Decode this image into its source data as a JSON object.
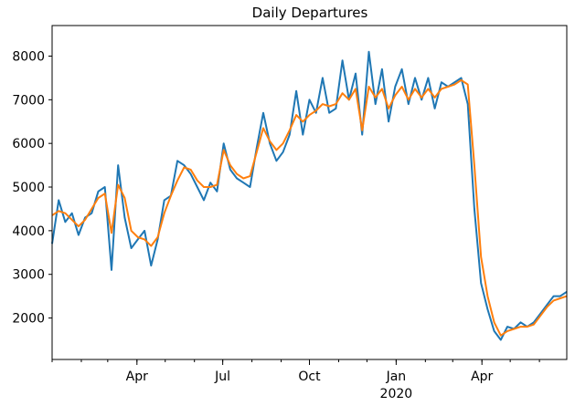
{
  "chart_data": {
    "type": "line",
    "title": "Daily Departures",
    "xlabel": "",
    "ylabel": "",
    "x_range": [
      "2019-01-01",
      "2020-06-30"
    ],
    "ylim": [
      1050,
      8700
    ],
    "grid": false,
    "legend": "none",
    "x_ticks": [
      {
        "date": "2019-04-01",
        "label": "Apr"
      },
      {
        "date": "2019-07-01",
        "label": "Jul"
      },
      {
        "date": "2019-10-01",
        "label": "Oct"
      },
      {
        "date": "2020-01-01",
        "label": "Jan"
      },
      {
        "date": "2020-04-01",
        "label": "Apr"
      }
    ],
    "x_year_label": {
      "date": "2020-01-01",
      "label": "2020"
    },
    "y_ticks": [
      2000,
      3000,
      4000,
      5000,
      6000,
      7000,
      8000
    ],
    "series": [
      {
        "color": "#1f77b4",
        "points": [
          [
            "2019-01-01",
            3700
          ],
          [
            "2019-01-08",
            4700
          ],
          [
            "2019-01-15",
            4200
          ],
          [
            "2019-01-22",
            4400
          ],
          [
            "2019-01-29",
            3900
          ],
          [
            "2019-02-05",
            4300
          ],
          [
            "2019-02-12",
            4400
          ],
          [
            "2019-02-19",
            4900
          ],
          [
            "2019-02-26",
            5000
          ],
          [
            "2019-03-05",
            3100
          ],
          [
            "2019-03-12",
            5500
          ],
          [
            "2019-03-19",
            4300
          ],
          [
            "2019-03-26",
            3600
          ],
          [
            "2019-04-02",
            3800
          ],
          [
            "2019-04-09",
            4000
          ],
          [
            "2019-04-16",
            3200
          ],
          [
            "2019-04-23",
            3800
          ],
          [
            "2019-04-30",
            4700
          ],
          [
            "2019-05-07",
            4800
          ],
          [
            "2019-05-14",
            5600
          ],
          [
            "2019-05-21",
            5500
          ],
          [
            "2019-05-28",
            5300
          ],
          [
            "2019-06-04",
            5000
          ],
          [
            "2019-06-11",
            4700
          ],
          [
            "2019-06-18",
            5100
          ],
          [
            "2019-06-25",
            4900
          ],
          [
            "2019-07-02",
            6000
          ],
          [
            "2019-07-09",
            5400
          ],
          [
            "2019-07-16",
            5200
          ],
          [
            "2019-07-23",
            5100
          ],
          [
            "2019-07-30",
            5000
          ],
          [
            "2019-08-06",
            5900
          ],
          [
            "2019-08-13",
            6700
          ],
          [
            "2019-08-20",
            6000
          ],
          [
            "2019-08-27",
            5600
          ],
          [
            "2019-09-03",
            5800
          ],
          [
            "2019-09-10",
            6200
          ],
          [
            "2019-09-17",
            7200
          ],
          [
            "2019-09-24",
            6200
          ],
          [
            "2019-10-01",
            7000
          ],
          [
            "2019-10-08",
            6700
          ],
          [
            "2019-10-15",
            7500
          ],
          [
            "2019-10-22",
            6700
          ],
          [
            "2019-10-29",
            6800
          ],
          [
            "2019-11-05",
            7900
          ],
          [
            "2019-11-12",
            7000
          ],
          [
            "2019-11-19",
            7600
          ],
          [
            "2019-11-26",
            6200
          ],
          [
            "2019-12-03",
            8100
          ],
          [
            "2019-12-10",
            6900
          ],
          [
            "2019-12-17",
            7700
          ],
          [
            "2019-12-24",
            6500
          ],
          [
            "2019-12-31",
            7300
          ],
          [
            "2020-01-07",
            7700
          ],
          [
            "2020-01-14",
            6900
          ],
          [
            "2020-01-21",
            7500
          ],
          [
            "2020-01-28",
            7000
          ],
          [
            "2020-02-04",
            7500
          ],
          [
            "2020-02-11",
            6800
          ],
          [
            "2020-02-18",
            7400
          ],
          [
            "2020-02-25",
            7300
          ],
          [
            "2020-03-03",
            7400
          ],
          [
            "2020-03-10",
            7500
          ],
          [
            "2020-03-17",
            6900
          ],
          [
            "2020-03-24",
            4500
          ],
          [
            "2020-03-31",
            2800
          ],
          [
            "2020-04-07",
            2200
          ],
          [
            "2020-04-14",
            1700
          ],
          [
            "2020-04-21",
            1500
          ],
          [
            "2020-04-28",
            1800
          ],
          [
            "2020-05-05",
            1750
          ],
          [
            "2020-05-12",
            1900
          ],
          [
            "2020-05-19",
            1800
          ],
          [
            "2020-05-26",
            1900
          ],
          [
            "2020-06-02",
            2100
          ],
          [
            "2020-06-09",
            2300
          ],
          [
            "2020-06-16",
            2500
          ],
          [
            "2020-06-23",
            2500
          ],
          [
            "2020-06-30",
            2600
          ]
        ]
      },
      {
        "color": "#ff7f0e",
        "points": [
          [
            "2019-01-01",
            4350
          ],
          [
            "2019-01-08",
            4450
          ],
          [
            "2019-01-15",
            4400
          ],
          [
            "2019-01-22",
            4250
          ],
          [
            "2019-01-29",
            4100
          ],
          [
            "2019-02-05",
            4250
          ],
          [
            "2019-02-12",
            4500
          ],
          [
            "2019-02-19",
            4750
          ],
          [
            "2019-02-26",
            4850
          ],
          [
            "2019-03-05",
            3950
          ],
          [
            "2019-03-12",
            5050
          ],
          [
            "2019-03-19",
            4750
          ],
          [
            "2019-03-26",
            4000
          ],
          [
            "2019-04-02",
            3850
          ],
          [
            "2019-04-09",
            3800
          ],
          [
            "2019-04-16",
            3650
          ],
          [
            "2019-04-23",
            3850
          ],
          [
            "2019-04-30",
            4400
          ],
          [
            "2019-05-07",
            4800
          ],
          [
            "2019-05-14",
            5150
          ],
          [
            "2019-05-21",
            5450
          ],
          [
            "2019-05-28",
            5400
          ],
          [
            "2019-06-04",
            5150
          ],
          [
            "2019-06-11",
            5000
          ],
          [
            "2019-06-18",
            5000
          ],
          [
            "2019-06-25",
            5050
          ],
          [
            "2019-07-02",
            5850
          ],
          [
            "2019-07-09",
            5500
          ],
          [
            "2019-07-16",
            5300
          ],
          [
            "2019-07-23",
            5200
          ],
          [
            "2019-07-30",
            5250
          ],
          [
            "2019-08-06",
            5800
          ],
          [
            "2019-08-13",
            6350
          ],
          [
            "2019-08-20",
            6050
          ],
          [
            "2019-08-27",
            5850
          ],
          [
            "2019-09-03",
            6000
          ],
          [
            "2019-09-10",
            6300
          ],
          [
            "2019-09-17",
            6650
          ],
          [
            "2019-09-24",
            6500
          ],
          [
            "2019-10-01",
            6650
          ],
          [
            "2019-10-08",
            6750
          ],
          [
            "2019-10-15",
            6900
          ],
          [
            "2019-10-22",
            6850
          ],
          [
            "2019-10-29",
            6900
          ],
          [
            "2019-11-05",
            7150
          ],
          [
            "2019-11-12",
            7000
          ],
          [
            "2019-11-19",
            7250
          ],
          [
            "2019-11-26",
            6300
          ],
          [
            "2019-12-03",
            7300
          ],
          [
            "2019-12-10",
            7050
          ],
          [
            "2019-12-17",
            7250
          ],
          [
            "2019-12-24",
            6800
          ],
          [
            "2019-12-31",
            7100
          ],
          [
            "2020-01-07",
            7300
          ],
          [
            "2020-01-14",
            7000
          ],
          [
            "2020-01-21",
            7250
          ],
          [
            "2020-01-28",
            7050
          ],
          [
            "2020-02-04",
            7250
          ],
          [
            "2020-02-11",
            7050
          ],
          [
            "2020-02-18",
            7250
          ],
          [
            "2020-02-25",
            7300
          ],
          [
            "2020-03-03",
            7350
          ],
          [
            "2020-03-10",
            7450
          ],
          [
            "2020-03-17",
            7350
          ],
          [
            "2020-03-24",
            5500
          ],
          [
            "2020-03-31",
            3400
          ],
          [
            "2020-04-07",
            2500
          ],
          [
            "2020-04-14",
            1900
          ],
          [
            "2020-04-21",
            1600
          ],
          [
            "2020-04-28",
            1700
          ],
          [
            "2020-05-05",
            1750
          ],
          [
            "2020-05-12",
            1800
          ],
          [
            "2020-05-19",
            1800
          ],
          [
            "2020-05-26",
            1850
          ],
          [
            "2020-06-02",
            2050
          ],
          [
            "2020-06-09",
            2250
          ],
          [
            "2020-06-16",
            2400
          ],
          [
            "2020-06-23",
            2450
          ],
          [
            "2020-06-30",
            2500
          ]
        ]
      }
    ]
  }
}
